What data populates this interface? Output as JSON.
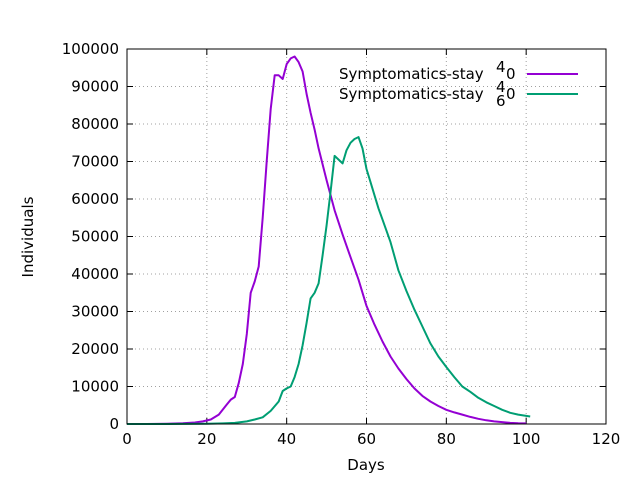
{
  "chart_data": {
    "type": "line",
    "xlabel": "Days",
    "ylabel": "Individuals",
    "xlim": [
      0,
      120
    ],
    "ylim": [
      0,
      100000
    ],
    "x_ticks": [
      0,
      20,
      40,
      60,
      80,
      100,
      120
    ],
    "y_ticks": [
      0,
      10000,
      20000,
      30000,
      40000,
      50000,
      60000,
      70000,
      80000,
      90000,
      100000
    ],
    "grid": true,
    "legend_position": "top-right",
    "series": [
      {
        "name": "Symptomatics-stay 40",
        "name_main": "Symptomatics-stay",
        "name_sup": "4",
        "name_tail": "0",
        "color": "#9400d3",
        "x": [
          0,
          5,
          10,
          14,
          17,
          19,
          21,
          23,
          25,
          26,
          27,
          28,
          29,
          30,
          31,
          32,
          33,
          34,
          35,
          36,
          37,
          38,
          39,
          40,
          41,
          42,
          43,
          44,
          45,
          46,
          47,
          48,
          50,
          52,
          54,
          56,
          58,
          60,
          62,
          64,
          66,
          68,
          70,
          72,
          74,
          76,
          78,
          80,
          82,
          84,
          86,
          88,
          90,
          92,
          94,
          96,
          98,
          100
        ],
        "y": [
          0,
          0,
          50,
          200,
          400,
          700,
          1200,
          2500,
          5200,
          6500,
          7200,
          11000,
          16000,
          24000,
          35000,
          38000,
          42000,
          55000,
          70000,
          84000,
          93000,
          93000,
          92000,
          96000,
          97500,
          98000,
          96500,
          94000,
          88000,
          83000,
          78500,
          73500,
          65000,
          57000,
          50500,
          44500,
          38500,
          31500,
          26500,
          22000,
          18000,
          14800,
          12000,
          9500,
          7500,
          6000,
          4800,
          3800,
          3100,
          2500,
          1900,
          1400,
          1000,
          700,
          500,
          300,
          200,
          150
        ],
        "name_offset_x": [
          0,
          4,
          2
        ]
      },
      {
        "name": "Symptomatics-stay 60",
        "name_main": "Symptomatics-stay",
        "name_sup": "6",
        "name_tail": "0",
        "color": "#009e73",
        "x": [
          0,
          10,
          20,
          24,
          27,
          30,
          32,
          34,
          36,
          38,
          39,
          40,
          41,
          42,
          43,
          44,
          45,
          46,
          47,
          48,
          49,
          50,
          51,
          52,
          53,
          54,
          55,
          56,
          57,
          58,
          59,
          60,
          61,
          62,
          63,
          64,
          66,
          68,
          70,
          72,
          74,
          76,
          78,
          80,
          82,
          84,
          86,
          88,
          90,
          92,
          94,
          96,
          98,
          101
        ],
        "y": [
          0,
          0,
          50,
          150,
          300,
          700,
          1200,
          1800,
          3500,
          6000,
          8800,
          9500,
          10000,
          12500,
          16000,
          21000,
          27000,
          33500,
          35000,
          37500,
          45000,
          53000,
          62000,
          71500,
          70500,
          69500,
          73000,
          75000,
          76000,
          76500,
          73500,
          68000,
          64500,
          61000,
          57500,
          54500,
          48500,
          41000,
          35500,
          30500,
          26000,
          21500,
          18000,
          15200,
          12500,
          10000,
          8600,
          7000,
          5800,
          4800,
          3800,
          3000,
          2500,
          2000
        ]
      }
    ]
  }
}
